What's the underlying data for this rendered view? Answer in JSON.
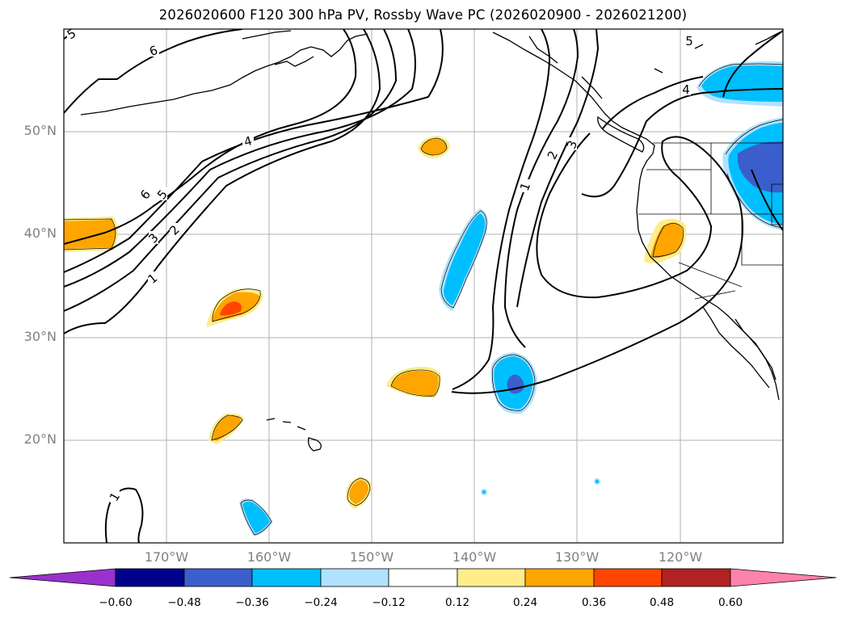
{
  "title": "2026020600 F120 300 hPa PV, Rossby Wave PC (2026020900 - 2026021200)",
  "lat_labels": [
    "50°N",
    "40°N",
    "30°N",
    "20°N"
  ],
  "lon_labels": [
    "170°W",
    "160°W",
    "150°W",
    "140°W",
    "130°W",
    "120°W"
  ],
  "contour_labels": [
    "5",
    "6",
    "4",
    "6",
    "5",
    "3",
    "2",
    "1",
    "1",
    "2",
    "3",
    "4",
    "5",
    "1"
  ],
  "colorbar": {
    "ticks": [
      "−0.60",
      "−0.48",
      "−0.36",
      "−0.24",
      "−0.12",
      "0.12",
      "0.24",
      "0.36",
      "0.48",
      "0.60"
    ],
    "colors": [
      "#9932cc",
      "#00008b",
      "#3a5fcd",
      "#00bfff",
      "#b0e2ff",
      "#ffffff",
      "#ffec8b",
      "#ffa500",
      "#ff4500",
      "#b22222",
      "#ff82ab"
    ]
  }
}
